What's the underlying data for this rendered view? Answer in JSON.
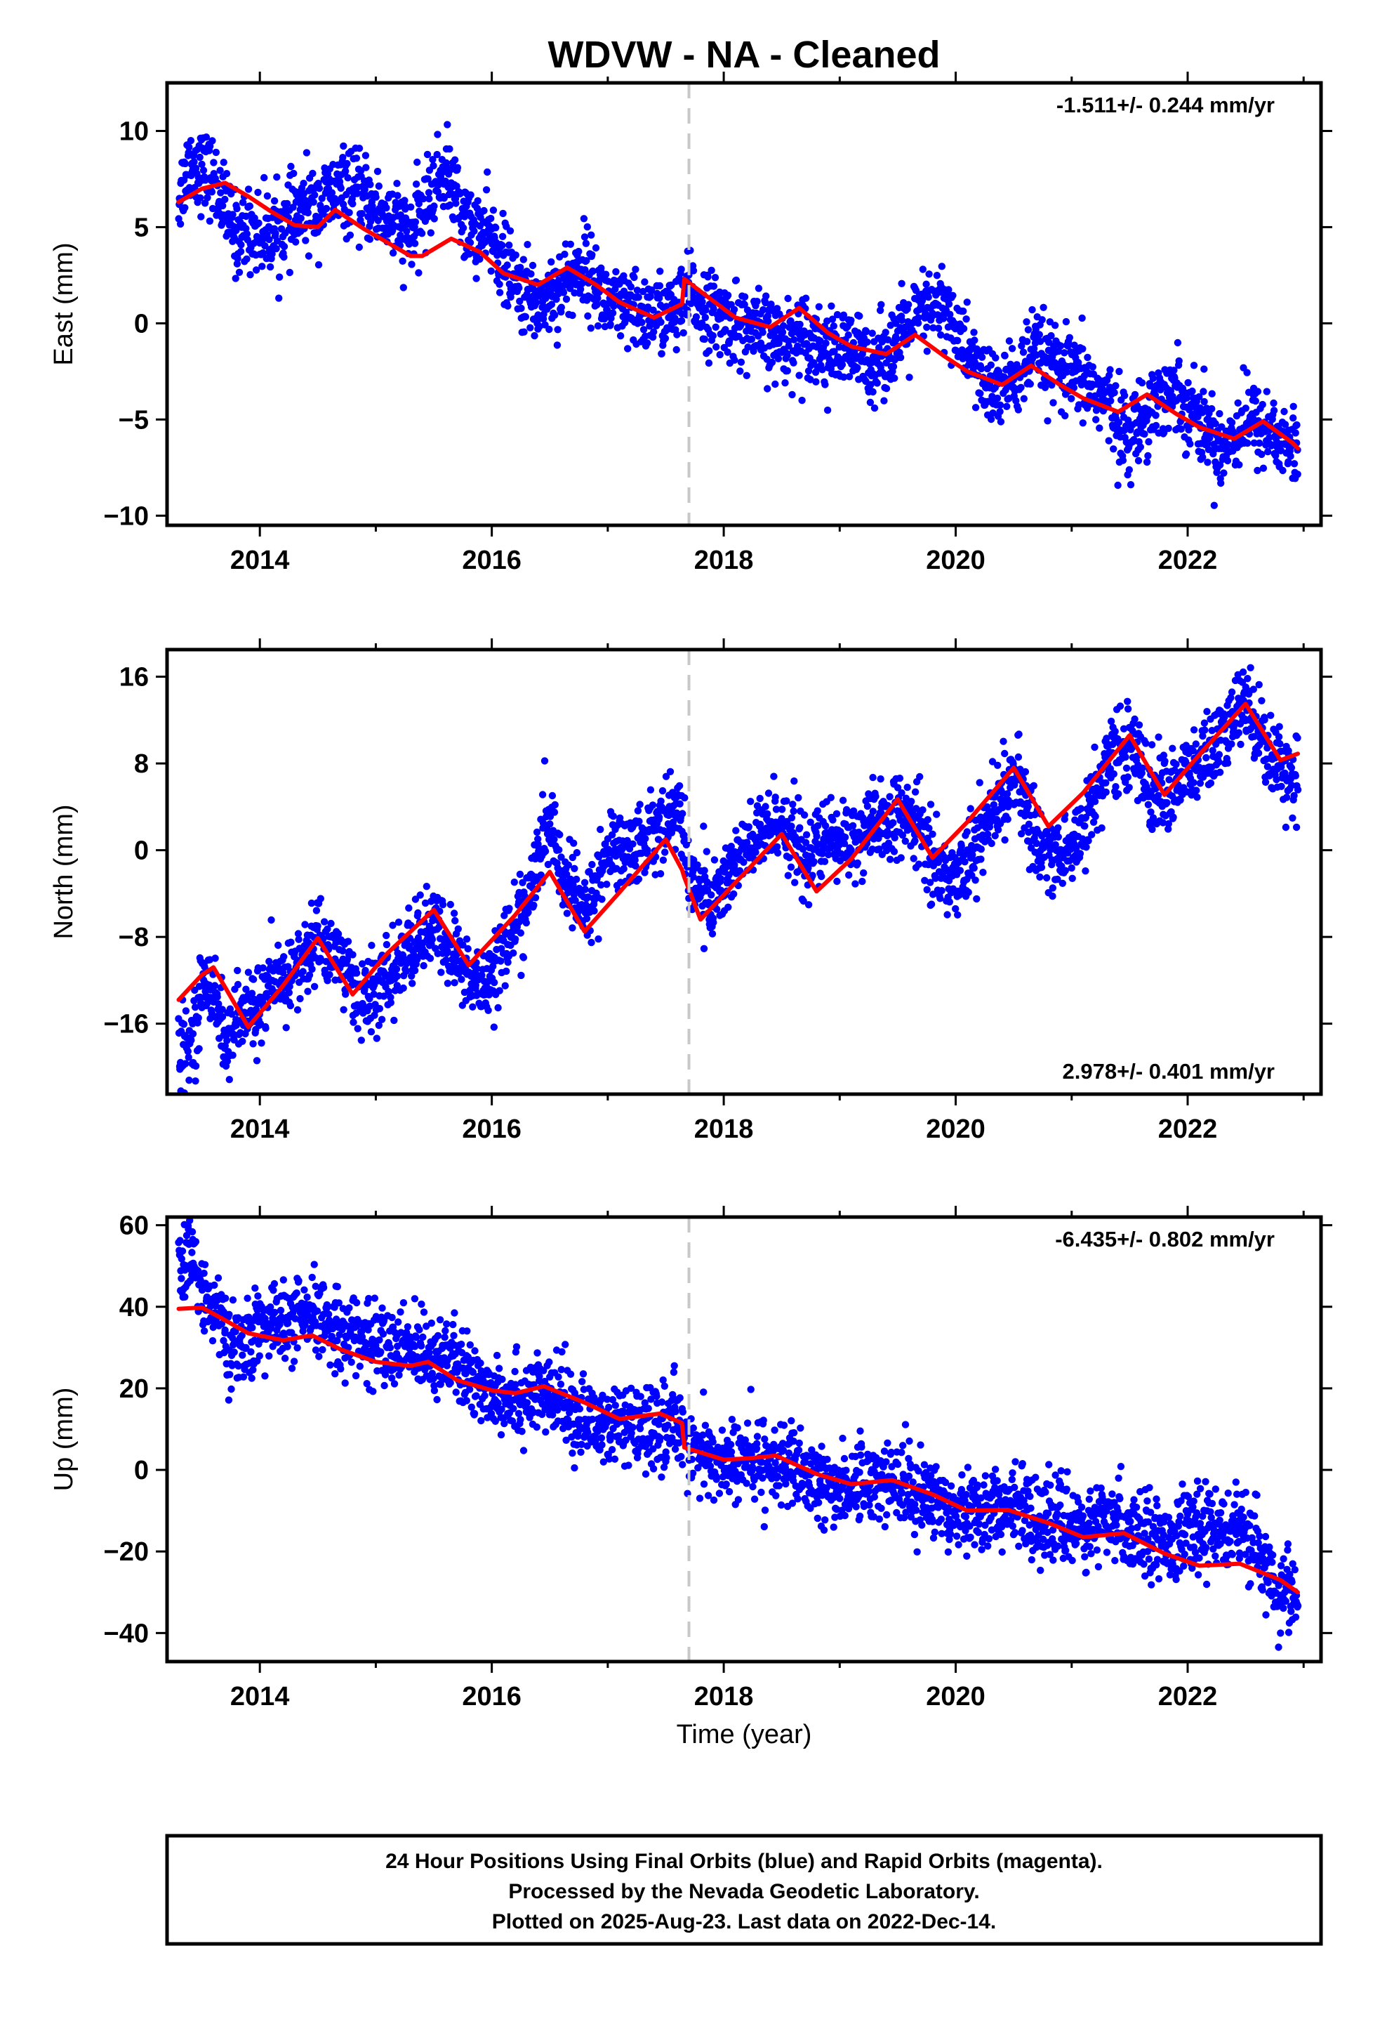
{
  "title": "WDVW  - NA - Cleaned",
  "xlabel": "Time (year)",
  "footer": {
    "line1": "24 Hour Positions Using Final Orbits (blue) and Rapid Orbits (magenta).",
    "line2": "Processed by the Nevada Geodetic Laboratory.",
    "line3": "Plotted on 2025-Aug-23. Last data on 2022-Dec-14."
  },
  "colors": {
    "points": "#0000ff",
    "model": "#ff0000",
    "equipment_change": "#c8c8c8",
    "axes": "#000000"
  },
  "chart_data": [
    {
      "type": "scatter",
      "component": "east",
      "ylabel": "East (mm)",
      "rate_label": "-1.511+/- 0.244 mm/yr",
      "rate_position": "top-right",
      "xlim": [
        2013.2,
        2023.15
      ],
      "ylim": [
        -10.5,
        12.5
      ],
      "xticks": [
        2014,
        2016,
        2018,
        2020,
        2022
      ],
      "yticks": [
        -10,
        -5,
        0,
        5,
        10
      ],
      "equipment_change_x": 2017.7,
      "point_color": "blue",
      "scatter_approx": {
        "x": [
          2013.3,
          2013.4,
          2013.5,
          2013.6,
          2013.7,
          2013.8,
          2013.9,
          2014.0,
          2014.2,
          2014.4,
          2014.5,
          2014.7,
          2014.9,
          2015.1,
          2015.3,
          2015.5,
          2015.6,
          2015.8,
          2016.0,
          2016.2,
          2016.4,
          2016.6,
          2016.8,
          2017.0,
          2017.2,
          2017.4,
          2017.6,
          2017.7,
          2017.9,
          2018.1,
          2018.3,
          2018.5,
          2018.7,
          2018.9,
          2019.1,
          2019.3,
          2019.5,
          2019.7,
          2019.9,
          2020.1,
          2020.3,
          2020.5,
          2020.7,
          2020.9,
          2021.1,
          2021.3,
          2021.5,
          2021.7,
          2021.9,
          2022.1,
          2022.3,
          2022.5,
          2022.7,
          2022.9
        ],
        "y": [
          6.5,
          8.5,
          8.0,
          7.5,
          6.0,
          4.5,
          5.0,
          4.5,
          5.0,
          6.0,
          6.0,
          7.0,
          6.5,
          5.5,
          4.5,
          7.0,
          8.0,
          5.0,
          4.5,
          2.0,
          1.0,
          2.0,
          3.0,
          1.0,
          0.5,
          0.5,
          0.5,
          1.5,
          0.5,
          0.0,
          -0.5,
          -1.0,
          -0.5,
          -1.5,
          -1.5,
          -2.0,
          -1.0,
          0.5,
          1.0,
          -1.5,
          -3.5,
          -3.0,
          -1.5,
          -2.5,
          -3.0,
          -4.0,
          -6.0,
          -4.0,
          -3.5,
          -5.0,
          -6.5,
          -5.0,
          -5.5,
          -6.5
        ]
      },
      "model": {
        "x": [
          2013.3,
          2013.5,
          2013.7,
          2013.9,
          2014.1,
          2014.3,
          2014.5,
          2014.65,
          2014.9,
          2015.1,
          2015.3,
          2015.4,
          2015.65,
          2015.9,
          2016.1,
          2016.4,
          2016.65,
          2016.9,
          2017.1,
          2017.4,
          2017.64,
          2017.66,
          2017.9,
          2018.1,
          2018.4,
          2018.65,
          2018.9,
          2019.1,
          2019.4,
          2019.65,
          2019.9,
          2020.1,
          2020.4,
          2020.65,
          2020.9,
          2021.1,
          2021.4,
          2021.65,
          2021.9,
          2022.1,
          2022.4,
          2022.65,
          2022.9,
          2022.95
        ],
        "y": [
          6.3,
          7.0,
          7.3,
          6.6,
          5.8,
          5.1,
          5.0,
          5.9,
          4.9,
          4.2,
          3.5,
          3.5,
          4.4,
          3.7,
          2.6,
          2.0,
          2.9,
          2.0,
          1.1,
          0.3,
          1.0,
          2.3,
          1.2,
          0.3,
          -0.2,
          0.8,
          -0.5,
          -1.2,
          -1.6,
          -0.6,
          -1.7,
          -2.5,
          -3.2,
          -2.2,
          -3.2,
          -3.9,
          -4.6,
          -3.7,
          -4.7,
          -5.4,
          -6.0,
          -5.1,
          -6.2,
          -6.5
        ]
      }
    },
    {
      "type": "scatter",
      "component": "north",
      "ylabel": "North (mm)",
      "rate_label": "2.978+/- 0.401 mm/yr",
      "rate_position": "bottom-right",
      "xlim": [
        2013.2,
        2023.15
      ],
      "ylim": [
        -22.5,
        18.5
      ],
      "xticks": [
        2014,
        2016,
        2018,
        2020,
        2022
      ],
      "yticks": [
        -16,
        -8,
        0,
        8,
        16
      ],
      "equipment_change_x": 2017.7,
      "point_color": "blue",
      "scatter_approx": {
        "x": [
          2013.3,
          2013.4,
          2013.5,
          2013.6,
          2013.7,
          2013.8,
          2013.9,
          2014.0,
          2014.2,
          2014.4,
          2014.5,
          2014.7,
          2014.9,
          2015.1,
          2015.3,
          2015.5,
          2015.7,
          2015.9,
          2016.1,
          2016.3,
          2016.5,
          2016.6,
          2016.8,
          2017.0,
          2017.2,
          2017.4,
          2017.6,
          2017.7,
          2017.9,
          2018.1,
          2018.3,
          2018.5,
          2018.7,
          2018.9,
          2019.1,
          2019.3,
          2019.5,
          2019.7,
          2019.9,
          2020.1,
          2020.3,
          2020.5,
          2020.7,
          2020.9,
          2021.1,
          2021.3,
          2021.5,
          2021.7,
          2021.9,
          2022.1,
          2022.3,
          2022.5,
          2022.7,
          2022.9
        ],
        "y": [
          -19.0,
          -18.0,
          -13.0,
          -12.0,
          -18.0,
          -16.0,
          -15.0,
          -14.0,
          -12.0,
          -10.0,
          -8.0,
          -10.0,
          -14.0,
          -12.0,
          -9.0,
          -7.0,
          -10.0,
          -13.0,
          -9.0,
          -5.0,
          3.0,
          -2.0,
          -6.0,
          0.0,
          0.0,
          2.0,
          4.0,
          -2.0,
          -5.0,
          -1.0,
          1.0,
          3.0,
          -1.0,
          1.0,
          1.0,
          2.0,
          3.0,
          2.0,
          -3.0,
          -1.0,
          3.0,
          7.0,
          1.0,
          -1.0,
          2.0,
          8.0,
          10.0,
          5.0,
          6.0,
          8.0,
          10.0,
          14.0,
          9.0,
          7.0
        ]
      },
      "model": {
        "x": [
          2013.3,
          2013.5,
          2013.6,
          2013.9,
          2014.2,
          2014.5,
          2014.8,
          2015.1,
          2015.5,
          2015.8,
          2016.2,
          2016.5,
          2016.8,
          2017.1,
          2017.5,
          2017.64,
          2017.66,
          2017.8,
          2018.1,
          2018.5,
          2018.8,
          2019.1,
          2019.5,
          2019.8,
          2020.1,
          2020.5,
          2020.8,
          2021.1,
          2021.5,
          2021.8,
          2022.1,
          2022.5,
          2022.8,
          2022.95
        ],
        "y": [
          -13.8,
          -11.5,
          -10.8,
          -16.3,
          -12.5,
          -8.1,
          -13.3,
          -9.5,
          -5.5,
          -10.6,
          -6.0,
          -2.0,
          -7.5,
          -3.9,
          1.0,
          -1.8,
          -2.5,
          -6.4,
          -3.0,
          1.5,
          -3.8,
          -0.8,
          4.7,
          -0.7,
          2.6,
          7.6,
          2.2,
          5.3,
          10.6,
          5.1,
          8.8,
          13.5,
          8.3,
          8.9
        ]
      }
    },
    {
      "type": "scatter",
      "component": "up",
      "ylabel": "Up (mm)",
      "rate_label": "-6.435+/- 0.802 mm/yr",
      "rate_position": "top-right",
      "xlim": [
        2013.2,
        2023.15
      ],
      "ylim": [
        -47,
        62
      ],
      "xticks": [
        2014,
        2016,
        2018,
        2020,
        2022
      ],
      "yticks": [
        -40,
        -20,
        0,
        20,
        40,
        60
      ],
      "equipment_change_x": 2017.7,
      "point_color": "blue",
      "scatter_approx": {
        "x": [
          2013.3,
          2013.4,
          2013.5,
          2013.6,
          2013.7,
          2013.8,
          2013.9,
          2014.0,
          2014.2,
          2014.4,
          2014.6,
          2014.8,
          2015.0,
          2015.2,
          2015.4,
          2015.6,
          2015.8,
          2016.0,
          2016.2,
          2016.4,
          2016.6,
          2016.8,
          2017.0,
          2017.2,
          2017.4,
          2017.6,
          2017.8,
          2018.0,
          2018.2,
          2018.4,
          2018.6,
          2018.8,
          2019.0,
          2019.2,
          2019.4,
          2019.6,
          2019.8,
          2020.0,
          2020.2,
          2020.4,
          2020.6,
          2020.8,
          2021.0,
          2021.2,
          2021.4,
          2021.6,
          2021.8,
          2022.0,
          2022.2,
          2022.4,
          2022.6,
          2022.8,
          2022.95
        ],
        "y": [
          48.0,
          52.0,
          45.0,
          40.0,
          33.0,
          28.0,
          32.0,
          35.0,
          36.0,
          37.0,
          36.0,
          33.0,
          31.0,
          29.0,
          30.0,
          28.0,
          22.0,
          20.0,
          18.0,
          18.0,
          17.0,
          12.0,
          11.0,
          10.0,
          10.0,
          12.0,
          3.0,
          2.0,
          2.0,
          3.0,
          0.0,
          -4.0,
          -4.0,
          -3.0,
          -2.0,
          -5.0,
          -7.0,
          -9.0,
          -10.0,
          -9.0,
          -10.0,
          -12.0,
          -14.0,
          -14.0,
          -13.0,
          -15.0,
          -17.0,
          -16.0,
          -14.0,
          -14.0,
          -20.0,
          -30.0,
          -30.0
        ]
      },
      "model": {
        "x": [
          2013.3,
          2013.5,
          2013.65,
          2013.9,
          2014.2,
          2014.45,
          2014.7,
          2015.0,
          2015.3,
          2015.45,
          2015.7,
          2016.0,
          2016.2,
          2016.45,
          2016.8,
          2017.1,
          2017.45,
          2017.64,
          2017.66,
          2018.0,
          2018.2,
          2018.45,
          2018.8,
          2019.1,
          2019.45,
          2019.8,
          2020.1,
          2020.45,
          2020.8,
          2021.1,
          2021.45,
          2021.8,
          2022.1,
          2022.45,
          2022.8,
          2022.95
        ],
        "y": [
          39.5,
          39.8,
          37.5,
          33.5,
          31.8,
          33.0,
          29.5,
          26.5,
          25.5,
          26.5,
          22.0,
          19.5,
          18.8,
          20.5,
          16.5,
          12.5,
          13.8,
          11.5,
          5.5,
          2.5,
          2.8,
          3.5,
          -1.0,
          -3.5,
          -2.5,
          -6.0,
          -10.0,
          -9.8,
          -13.0,
          -16.5,
          -15.5,
          -20.5,
          -23.5,
          -23.0,
          -27.0,
          -30.0
        ]
      }
    }
  ]
}
